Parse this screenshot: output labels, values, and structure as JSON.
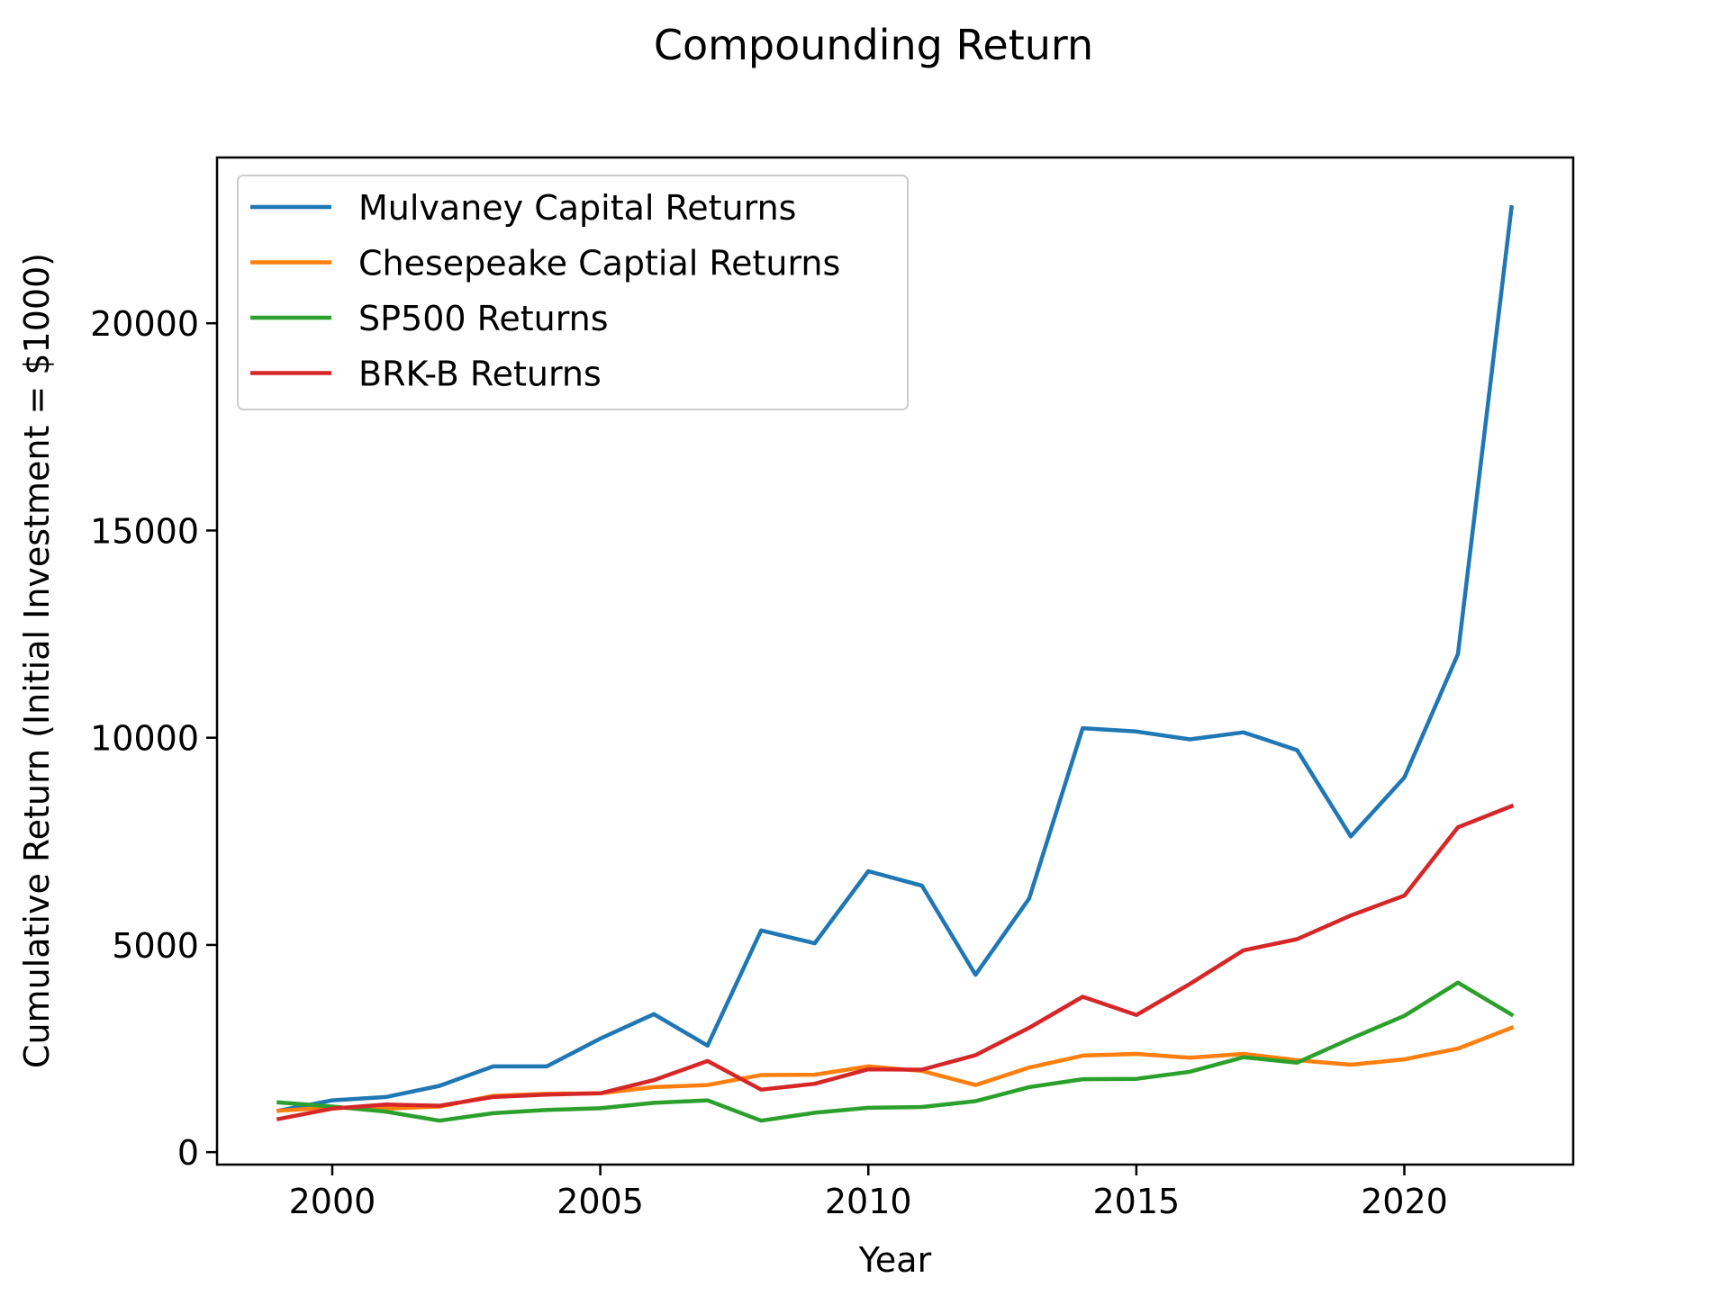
{
  "chart_data": {
    "type": "line",
    "title": "Compounding Return",
    "xlabel": "Year",
    "ylabel": "Cumulative Return (Initial Investment = $1000)",
    "xlim": [
      1997.85,
      2023.15
    ],
    "ylim": [
      -300,
      24000
    ],
    "xticks": [
      2000,
      2005,
      2010,
      2015,
      2020
    ],
    "yticks": [
      0,
      5000,
      10000,
      15000,
      20000
    ],
    "x": [
      1999,
      2000,
      2001,
      2002,
      2003,
      2004,
      2005,
      2006,
      2007,
      2008,
      2009,
      2010,
      2011,
      2012,
      2013,
      2014,
      2015,
      2016,
      2017,
      2018,
      2019,
      2020,
      2021,
      2022
    ],
    "legend_position": "upper-left",
    "series": [
      {
        "name": "Mulvaney Capital Returns",
        "color": "#1f77b4",
        "values": [
          1000,
          1250,
          1330,
          1600,
          2070,
          2070,
          2740,
          3330,
          2570,
          5350,
          5040,
          6780,
          6430,
          4280,
          6120,
          10230,
          10150,
          9960,
          10130,
          9700,
          7620,
          9040,
          12020,
          22800
        ]
      },
      {
        "name": "Chesepeake Captial Returns",
        "color": "#ff7f0e",
        "values": [
          1000,
          1080,
          1050,
          1100,
          1360,
          1410,
          1420,
          1570,
          1620,
          1860,
          1870,
          2070,
          1960,
          1620,
          2040,
          2330,
          2370,
          2280,
          2370,
          2220,
          2110,
          2240,
          2500,
          3000
        ]
      },
      {
        "name": "SP500 Returns",
        "color": "#2ca02c",
        "values": [
          1200,
          1100,
          980,
          760,
          940,
          1020,
          1060,
          1190,
          1250,
          760,
          950,
          1070,
          1090,
          1230,
          1570,
          1760,
          1770,
          1940,
          2290,
          2160,
          2740,
          3290,
          4090,
          3320
        ]
      },
      {
        "name": "BRK-B Returns",
        "color": "#d62728",
        "values": [
          800,
          1050,
          1150,
          1120,
          1330,
          1390,
          1420,
          1740,
          2200,
          1510,
          1650,
          2000,
          1990,
          2340,
          3000,
          3750,
          3310,
          4060,
          4870,
          5140,
          5710,
          6190,
          7840,
          8350
        ]
      }
    ]
  }
}
